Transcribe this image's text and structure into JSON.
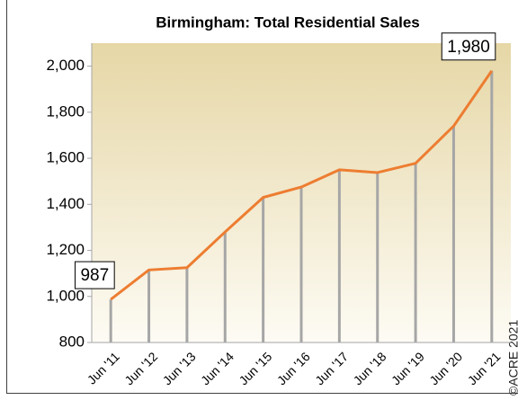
{
  "chart_data": {
    "type": "line",
    "title": "Birmingham: Total Residential Sales",
    "categories": [
      "Jun '11",
      "Jun '12",
      "Jun '13",
      "Jun '14",
      "Jun '15",
      "Jun '16",
      "Jun '17",
      "Jun '18",
      "Jun '19",
      "Jun '20",
      "Jun '21"
    ],
    "series": [
      {
        "name": "Total Residential Sales",
        "color": "#ed7d31",
        "values": [
          987,
          1115,
          1125,
          1280,
          1430,
          1475,
          1550,
          1538,
          1578,
          1740,
          1980
        ]
      }
    ],
    "value_labels": [
      "987",
      null,
      null,
      null,
      null,
      null,
      null,
      null,
      null,
      null,
      "1,980"
    ],
    "ylim": [
      800,
      2100
    ],
    "yticks": [
      {
        "value": 800,
        "label": "800"
      },
      {
        "value": 1000,
        "label": "1,000"
      },
      {
        "value": 1200,
        "label": "1,200"
      },
      {
        "value": 1400,
        "label": "1,400"
      },
      {
        "value": 1600,
        "label": "1,600"
      },
      {
        "value": 1800,
        "label": "1,800"
      },
      {
        "value": 2000,
        "label": "2,000"
      }
    ],
    "drop_line_color": "#a6a6a6",
    "credit": "©ACRE 2021"
  }
}
